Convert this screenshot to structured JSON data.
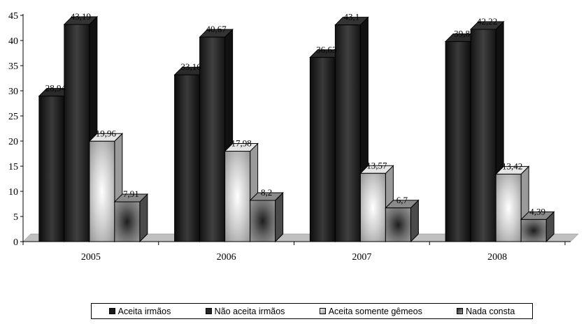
{
  "chart_data": {
    "type": "bar",
    "categories": [
      "2005",
      "2006",
      "2007",
      "2008"
    ],
    "series": [
      {
        "name": "Aceita irmãos",
        "values": [
          28.94,
          33.16,
          36.63,
          39.8
        ],
        "labels": [
          "28,94",
          "33,16",
          "36,63",
          "39,8"
        ],
        "color": "#1a1a1a"
      },
      {
        "name": "Não aceita irmãos",
        "values": [
          43.19,
          40.67,
          43.1,
          42.22
        ],
        "labels": [
          "43,19",
          "40,67",
          "43,1",
          "42,22"
        ],
        "color": "#262626"
      },
      {
        "name": "Aceita somente gêmeos",
        "values": [
          19.96,
          17.98,
          13.57,
          13.42
        ],
        "labels": [
          "19,96",
          "17,98",
          "13,57",
          "13,42"
        ],
        "color": "#c8c8c8"
      },
      {
        "name": "Nada consta",
        "values": [
          7.91,
          8.2,
          6.7,
          4.39
        ],
        "labels": [
          "7,91",
          "8,2",
          "6,7",
          "4,39"
        ],
        "color": "#6e6e6e"
      }
    ],
    "yticks": [
      0,
      5,
      10,
      15,
      20,
      25,
      30,
      35,
      40,
      45
    ],
    "ylim": [
      0,
      45
    ],
    "grid": false,
    "legend_position": "bottom"
  }
}
